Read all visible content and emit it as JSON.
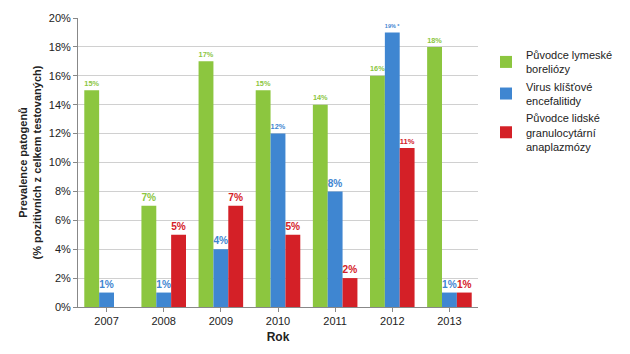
{
  "chart_data": {
    "type": "bar",
    "x_label": "Rok",
    "y_label": "Prevalence patogenů\n(% pozitivních z celkem testovaných)",
    "categories": [
      "2007",
      "2008",
      "2009",
      "2010",
      "2011",
      "2012",
      "2013"
    ],
    "series": [
      {
        "name": "Původce lymeské\nboreliózy",
        "color": "#8cc63f",
        "values": [
          15,
          7,
          17,
          15,
          14,
          16,
          18
        ],
        "value_labels": [
          "15%",
          "7%",
          "17%",
          "15%",
          "14%",
          "16%",
          "18%"
        ]
      },
      {
        "name": "Virus klíšťové\nencefalitidy",
        "color": "#3f86d1",
        "values": [
          1,
          1,
          4,
          12,
          8,
          19,
          1
        ],
        "value_labels": [
          "1%",
          "1%",
          "4%",
          "12%",
          "8%",
          "19% *",
          "1%"
        ]
      },
      {
        "name": "Původce lidské\ngranulocytární\nanaplazmózy",
        "color": "#d42027",
        "values": [
          null,
          5,
          7,
          5,
          2,
          11,
          1
        ],
        "value_labels": [
          null,
          "5%",
          "7%",
          "5%",
          "2%",
          "11%",
          "1%"
        ]
      }
    ],
    "ylim": [
      0,
      20
    ],
    "yticks": [
      {
        "value": 0,
        "label": "0%"
      },
      {
        "value": 2,
        "label": "2%"
      },
      {
        "value": 4,
        "label": "4%"
      },
      {
        "value": 6,
        "label": "6%"
      },
      {
        "value": 8,
        "label": "8%"
      },
      {
        "value": 10,
        "label": "10%"
      },
      {
        "value": 12,
        "label": "12%"
      },
      {
        "value": 14,
        "label": "14%"
      },
      {
        "value": 16,
        "label": "16%"
      },
      {
        "value": 18,
        "label": "18%"
      },
      {
        "value": 20,
        "label": "20%"
      }
    ],
    "grid": true,
    "legend": "right",
    "data_labels": true
  }
}
